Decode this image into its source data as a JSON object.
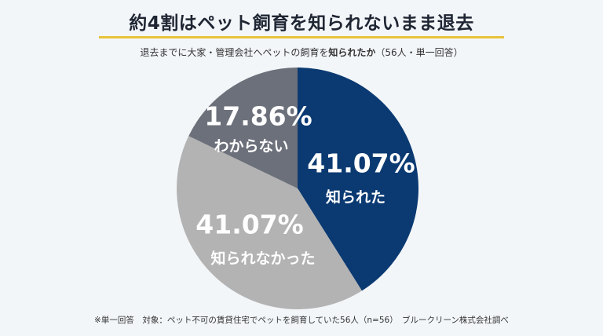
{
  "title": "約4割はペット飼育を知られないまま退去",
  "subtitle": {
    "prefix": "退去までに大家・管理会社へペットの飼育を",
    "emphasis": "知られたか",
    "suffix": "（56人・単一回答）"
  },
  "footnote": "※単一回答　対象：ペット不可の賃貸住宅でペットを飼育していた56人（n=56）　ブルークリーン株式会社調べ",
  "colors": {
    "known": "#0b3a72",
    "not_known": "#b3b3b3",
    "unsure": "#6c707a",
    "accent_underline": "#e8c23a"
  },
  "chart_data": {
    "type": "pie",
    "slices": [
      {
        "label": "知られた",
        "value": 41.07,
        "display": "41.07%",
        "color": "#0b3a72"
      },
      {
        "label": "知られなかった",
        "value": 41.07,
        "display": "41.07%",
        "color": "#b3b3b3"
      },
      {
        "label": "わからない",
        "value": 17.86,
        "display": "17.86%",
        "color": "#6c707a"
      }
    ]
  }
}
